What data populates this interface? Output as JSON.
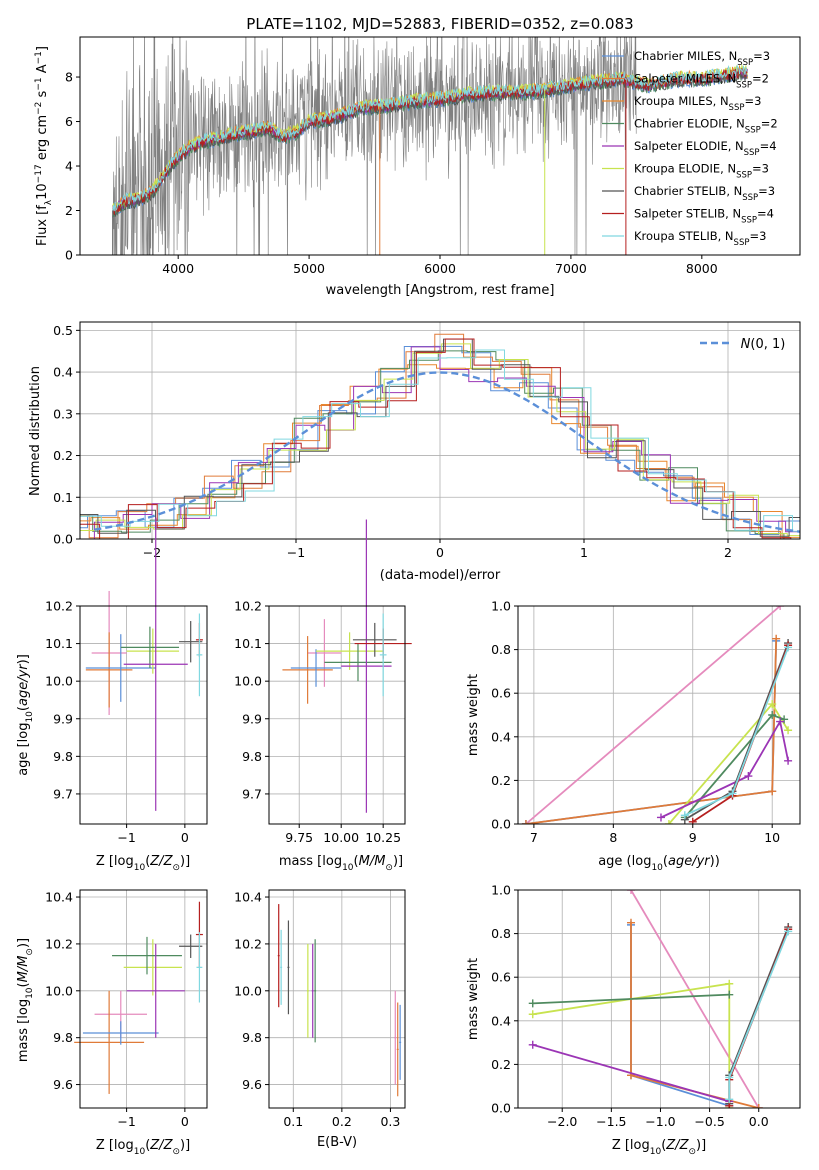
{
  "figure": {
    "title": "PLATE=1102, MJD=52883, FIBERID=0352, z=0.083"
  },
  "colors": {
    "chabrier_miles": "#5b8fd8",
    "salpeter_miles": "#e07b39",
    "kroupa_miles": "#e8872e",
    "chabrier_elodie": "#4f8a5f",
    "salpeter_elodie": "#9b35b5",
    "kroupa_elodie": "#c8e34f",
    "chabrier_stelib": "#555555",
    "salpeter_stelib": "#b51f1f",
    "kroupa_stelib": "#80d8e0",
    "pink": "#e58bbd",
    "data": "#808080",
    "normal": "#5b8fd8"
  },
  "chart_data": [
    {
      "id": "spectrum",
      "type": "line",
      "xlabel": "wavelength [Angstrom, rest frame]",
      "ylabel": "Flux [f_λ 10^-17 erg cm^-2 s^-1 A^-1]",
      "xlim": [
        3250,
        8750
      ],
      "ylim": [
        0,
        9.8
      ],
      "xticks": [
        4000,
        5000,
        6000,
        7000,
        8000
      ],
      "yticks": [
        0,
        2,
        4,
        6,
        8
      ],
      "grid": false,
      "legend_position": "right",
      "legend": [
        {
          "name": "Chabrier MILES, N_SSP=3",
          "base": "Chabrier MILES, N",
          "sub": "SSP",
          "tail": "=3",
          "color": "chabrier_miles"
        },
        {
          "name": "Salpeter MILES, N_SSP=2",
          "base": "Salpeter MILES, N",
          "sub": "SSP",
          "tail": "=2",
          "color": "salpeter_miles"
        },
        {
          "name": "Kroupa MILES, N_SSP=3",
          "base": "Kroupa MILES, N",
          "sub": "SSP",
          "tail": "=3",
          "color": "kroupa_miles"
        },
        {
          "name": "Chabrier ELODIE, N_SSP=2",
          "base": "Chabrier ELODIE, N",
          "sub": "SSP",
          "tail": "=2",
          "color": "chabrier_elodie"
        },
        {
          "name": "Salpeter ELODIE, N_SSP=4",
          "base": "Salpeter ELODIE, N",
          "sub": "SSP",
          "tail": "=4",
          "color": "salpeter_elodie"
        },
        {
          "name": "Kroupa ELODIE, N_SSP=3",
          "base": "Kroupa ELODIE, N",
          "sub": "SSP",
          "tail": "=3",
          "color": "kroupa_elodie"
        },
        {
          "name": "Chabrier STELIB, N_SSP=3",
          "base": "Chabrier STELIB, N",
          "sub": "SSP",
          "tail": "=3",
          "color": "chabrier_stelib"
        },
        {
          "name": "Salpeter STELIB, N_SSP=4",
          "base": "Salpeter STELIB, N",
          "sub": "SSP",
          "tail": "=4",
          "color": "salpeter_stelib"
        },
        {
          "name": "Kroupa STELIB, N_SSP=3",
          "base": "Kroupa STELIB, N",
          "sub": "SSP",
          "tail": "=3",
          "color": "kroupa_stelib"
        }
      ],
      "continuum": {
        "x": [
          3500,
          3600,
          3700,
          3800,
          3900,
          4000,
          4100,
          4200,
          4300,
          4400,
          4500,
          4600,
          4700,
          4800,
          4900,
          5000,
          5200,
          5400,
          5600,
          5800,
          6000,
          6200,
          6400,
          6600,
          6800,
          7000,
          7200,
          7400,
          7600,
          7800,
          8000,
          8200,
          8350
        ],
        "y": [
          2.0,
          2.4,
          2.5,
          2.8,
          3.7,
          4.4,
          4.9,
          5.1,
          5.2,
          5.4,
          5.5,
          5.6,
          5.7,
          5.3,
          5.5,
          6.0,
          6.2,
          6.6,
          6.7,
          6.9,
          7.0,
          7.2,
          7.3,
          7.3,
          7.4,
          7.6,
          7.8,
          7.9,
          7.6,
          7.9,
          7.9,
          8.1,
          8.2
        ]
      },
      "data_range": [
        3500,
        7500
      ]
    },
    {
      "id": "residuals",
      "type": "line",
      "xlabel": "(data-model)/error",
      "ylabel": "Normed distribution",
      "xlim": [
        -2.5,
        2.5
      ],
      "ylim": [
        0,
        0.52
      ],
      "xticks": [
        -2,
        -1,
        0,
        1,
        2
      ],
      "yticks": [
        0.0,
        0.1,
        0.2,
        0.3,
        0.4,
        0.5
      ],
      "grid": true,
      "legend_position": "top-right",
      "legend": [
        {
          "name": "N(0,1)",
          "color": "normal"
        }
      ],
      "bin_edges": [
        -2.6,
        -2.4,
        -2.2,
        -2.0,
        -1.8,
        -1.6,
        -1.4,
        -1.2,
        -1.0,
        -0.8,
        -0.6,
        -0.4,
        -0.2,
        0.0,
        0.2,
        0.4,
        0.6,
        0.8,
        1.0,
        1.2,
        1.4,
        1.6,
        1.8,
        2.0,
        2.2,
        2.4,
        2.6
      ],
      "hist_mean": [
        0.02,
        0.025,
        0.04,
        0.06,
        0.075,
        0.11,
        0.15,
        0.2,
        0.25,
        0.29,
        0.33,
        0.37,
        0.42,
        0.45,
        0.41,
        0.39,
        0.37,
        0.32,
        0.23,
        0.2,
        0.17,
        0.13,
        0.09,
        0.06,
        0.04,
        0.025
      ]
    },
    {
      "id": "z-age",
      "type": "scatter",
      "xlabel": "Z [log10(Z/Z⊙)]",
      "ylabel": "age [log10(age/yr)]",
      "xlim": [
        -1.8,
        0.38
      ],
      "ylim": [
        9.62,
        10.2
      ],
      "xticks": [
        -1,
        0
      ],
      "yticks": [
        9.7,
        9.8,
        9.9,
        10.0,
        10.1,
        10.2
      ],
      "grid": true
    },
    {
      "id": "mass-age",
      "type": "scatter",
      "xlabel": "mass [log10(M/M⊙)]",
      "ylabel": "",
      "xlim": [
        9.57,
        10.38
      ],
      "ylim": [
        9.62,
        10.2
      ],
      "xticks": [
        9.75,
        10.0,
        10.25
      ],
      "yticks": [
        9.7,
        9.8,
        9.9,
        10.0,
        10.1,
        10.2
      ],
      "grid": true
    },
    {
      "id": "age-weight",
      "type": "line",
      "xlabel": "age (log10(age/yr))",
      "ylabel": "mass weight",
      "xlim": [
        6.8,
        10.35
      ],
      "ylim": [
        0,
        1
      ],
      "xticks": [
        7,
        8,
        9,
        10
      ],
      "yticks": [
        0.0,
        0.2,
        0.4,
        0.6,
        0.8,
        1.0
      ],
      "grid": true,
      "series": [
        {
          "color": "pink",
          "points": [
            [
              6.9,
              0.0
            ],
            [
              10.1,
              1.0
            ]
          ]
        },
        {
          "color": "chabrier_miles",
          "points": [
            [
              6.9,
              0.0
            ],
            [
              10.0,
              0.15
            ],
            [
              10.05,
              0.84
            ]
          ]
        },
        {
          "color": "salpeter_miles",
          "points": [
            [
              6.9,
              0.0
            ],
            [
              10.0,
              0.15
            ],
            [
              10.05,
              0.85
            ]
          ]
        },
        {
          "color": "kroupa_elodie",
          "points": [
            [
              8.7,
              0.0
            ],
            [
              10.0,
              0.55
            ],
            [
              10.2,
              0.43
            ]
          ]
        },
        {
          "color": "chabrier_elodie",
          "points": [
            [
              8.9,
              0.03
            ],
            [
              10.0,
              0.5
            ],
            [
              10.15,
              0.48
            ]
          ]
        },
        {
          "color": "salpeter_elodie",
          "points": [
            [
              8.6,
              0.03
            ],
            [
              9.7,
              0.22
            ],
            [
              10.1,
              0.47
            ],
            [
              10.2,
              0.29
            ]
          ]
        },
        {
          "color": "chabrier_stelib",
          "points": [
            [
              8.9,
              0.02
            ],
            [
              9.5,
              0.15
            ],
            [
              10.2,
              0.83
            ]
          ]
        },
        {
          "color": "salpeter_stelib",
          "points": [
            [
              9.0,
              0.01
            ],
            [
              9.5,
              0.13
            ],
            [
              10.2,
              0.82
            ]
          ]
        },
        {
          "color": "kroupa_stelib",
          "points": [
            [
              8.9,
              0.04
            ],
            [
              9.5,
              0.14
            ],
            [
              10.2,
              0.81
            ]
          ]
        }
      ]
    },
    {
      "id": "z-mass",
      "type": "scatter",
      "xlabel": "Z [log10(Z/Z⊙)]",
      "ylabel": "mass [log10(M/M⊙)]",
      "xlim": [
        -1.8,
        0.38
      ],
      "ylim": [
        9.5,
        10.43
      ],
      "xticks": [
        -1,
        0
      ],
      "yticks": [
        9.6,
        9.8,
        10.0,
        10.2,
        10.4
      ],
      "grid": true
    },
    {
      "id": "ebv-mass",
      "type": "scatter",
      "xlabel": "E(B-V)",
      "ylabel": "",
      "xlim": [
        0.05,
        0.33
      ],
      "ylim": [
        9.5,
        10.43
      ],
      "xticks": [
        0.1,
        0.2,
        0.3
      ],
      "yticks": [
        9.6,
        9.8,
        10.0,
        10.2,
        10.4
      ],
      "grid": true
    },
    {
      "id": "z-weight",
      "type": "line",
      "xlabel": "Z [log10(Z/Z⊙)]",
      "ylabel": "mass weight",
      "xlim": [
        -2.45,
        0.42
      ],
      "ylim": [
        0,
        1
      ],
      "xticks": [
        -2.0,
        -1.5,
        -1.0,
        -0.5,
        0.0
      ],
      "yticks": [
        0.0,
        0.2,
        0.4,
        0.6,
        0.8,
        1.0
      ],
      "grid": true,
      "series": [
        {
          "color": "pink",
          "points": [
            [
              -1.3,
              1.0
            ],
            [
              0.0,
              0.0
            ]
          ]
        },
        {
          "color": "chabrier_miles",
          "points": [
            [
              -1.3,
              0.84
            ],
            [
              -1.3,
              0.15
            ],
            [
              -0.3,
              0.01
            ]
          ]
        },
        {
          "color": "salpeter_miles",
          "points": [
            [
              -1.3,
              0.85
            ],
            [
              -1.3,
              0.15
            ],
            [
              0.0,
              0.0
            ]
          ]
        },
        {
          "color": "kroupa_elodie",
          "points": [
            [
              -2.3,
              0.43
            ],
            [
              -0.3,
              0.57
            ],
            [
              -0.3,
              0.0
            ]
          ]
        },
        {
          "color": "chabrier_elodie",
          "points": [
            [
              -2.3,
              0.48
            ],
            [
              -0.3,
              0.52
            ]
          ]
        },
        {
          "color": "salpeter_elodie",
          "points": [
            [
              -2.3,
              0.29
            ],
            [
              -0.3,
              0.03
            ]
          ]
        },
        {
          "color": "chabrier_stelib",
          "points": [
            [
              -0.3,
              0.02
            ],
            [
              -0.3,
              0.15
            ],
            [
              0.3,
              0.83
            ]
          ]
        },
        {
          "color": "salpeter_stelib",
          "points": [
            [
              -0.3,
              0.01
            ],
            [
              -0.3,
              0.13
            ],
            [
              0.3,
              0.82
            ]
          ]
        },
        {
          "color": "kroupa_stelib",
          "points": [
            [
              -0.3,
              0.04
            ],
            [
              -0.3,
              0.14
            ],
            [
              0.3,
              0.81
            ]
          ]
        }
      ]
    }
  ]
}
